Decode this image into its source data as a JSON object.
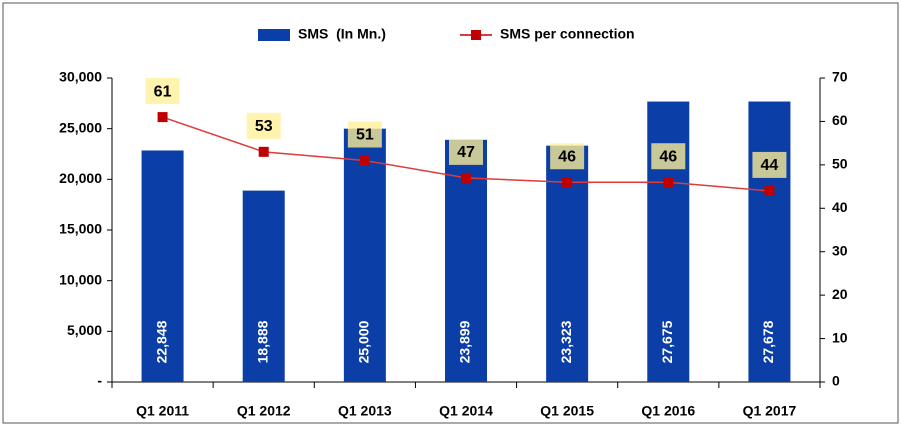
{
  "chart_data": {
    "type": "bar",
    "categories": [
      "Q1 2011",
      "Q1 2012",
      "Q1 2013",
      "Q1 2014",
      "Q1 2015",
      "Q1 2016",
      "Q1 2017"
    ],
    "series": [
      {
        "name": "SMS  (In Mn.)",
        "color": "#0b3ea6",
        "type": "bar",
        "values": [
          22848,
          18888,
          25000,
          23899,
          23323,
          27675,
          27678
        ],
        "value_labels": [
          "22,848",
          "18,888",
          "25,000",
          "23,899",
          "23,323",
          "27,675",
          "27,678"
        ]
      },
      {
        "name": "SMS per connection",
        "color": "#c00000",
        "type": "line",
        "axis": "y2",
        "values": [
          61,
          53,
          51,
          47,
          46,
          46,
          44
        ]
      }
    ],
    "ylim": [
      0,
      30000
    ],
    "yticks": [
      {
        "value": 0,
        "label": "-"
      },
      {
        "value": 5000,
        "label": "5,000"
      },
      {
        "value": 10000,
        "label": "10,000"
      },
      {
        "value": 15000,
        "label": "15,000"
      },
      {
        "value": 20000,
        "label": "20,000"
      },
      {
        "value": 25000,
        "label": "25,000"
      },
      {
        "value": 30000,
        "label": "30,000"
      }
    ],
    "y2lim": [
      0,
      70
    ],
    "y2ticks": [
      0,
      10,
      20,
      30,
      40,
      50,
      60,
      70
    ],
    "legend": "top"
  }
}
